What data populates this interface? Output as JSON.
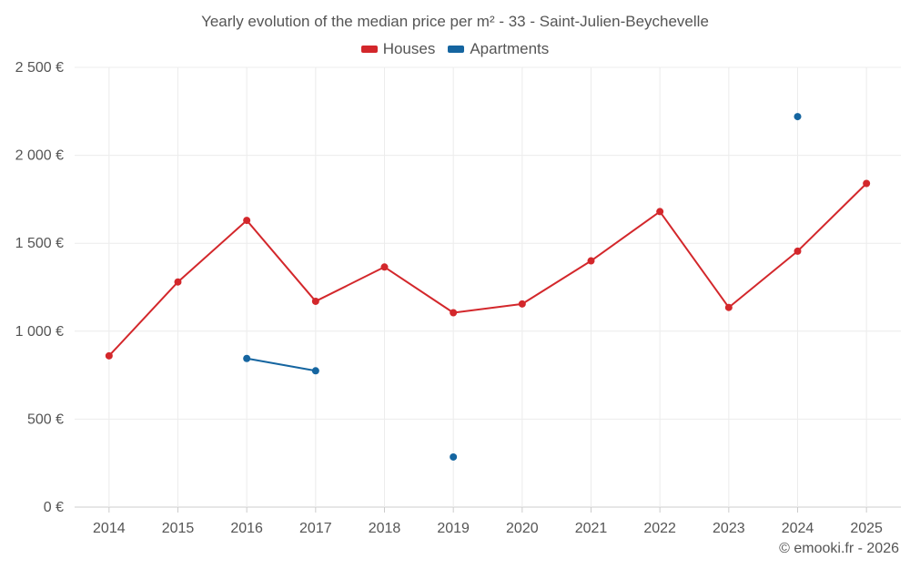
{
  "chart_data": {
    "type": "line",
    "title": "Yearly evolution of the median price per m² - 33 - Saint-Julien-Beychevelle",
    "xlabel": "",
    "ylabel": "",
    "categories": [
      "2014",
      "2015",
      "2016",
      "2017",
      "2018",
      "2019",
      "2020",
      "2021",
      "2022",
      "2023",
      "2024",
      "2025"
    ],
    "ylim": [
      0,
      2500
    ],
    "yticks": [
      0,
      500,
      1000,
      1500,
      2000,
      2500
    ],
    "ytick_labels": [
      "0 €",
      "500 €",
      "1 000 €",
      "1 500 €",
      "2 000 €",
      "2 500 €"
    ],
    "grid": true,
    "legend_position": "top-center",
    "series": [
      {
        "name": "Houses",
        "color": "#d3272b",
        "values": [
          860,
          1280,
          1630,
          1170,
          1365,
          1105,
          1155,
          1400,
          1680,
          1135,
          1455,
          1840
        ]
      },
      {
        "name": "Apartments",
        "color": "#1565a0",
        "values": [
          null,
          null,
          845,
          775,
          null,
          285,
          null,
          null,
          null,
          null,
          2220,
          null
        ]
      }
    ]
  },
  "credit": "© emooki.fr - 2026"
}
